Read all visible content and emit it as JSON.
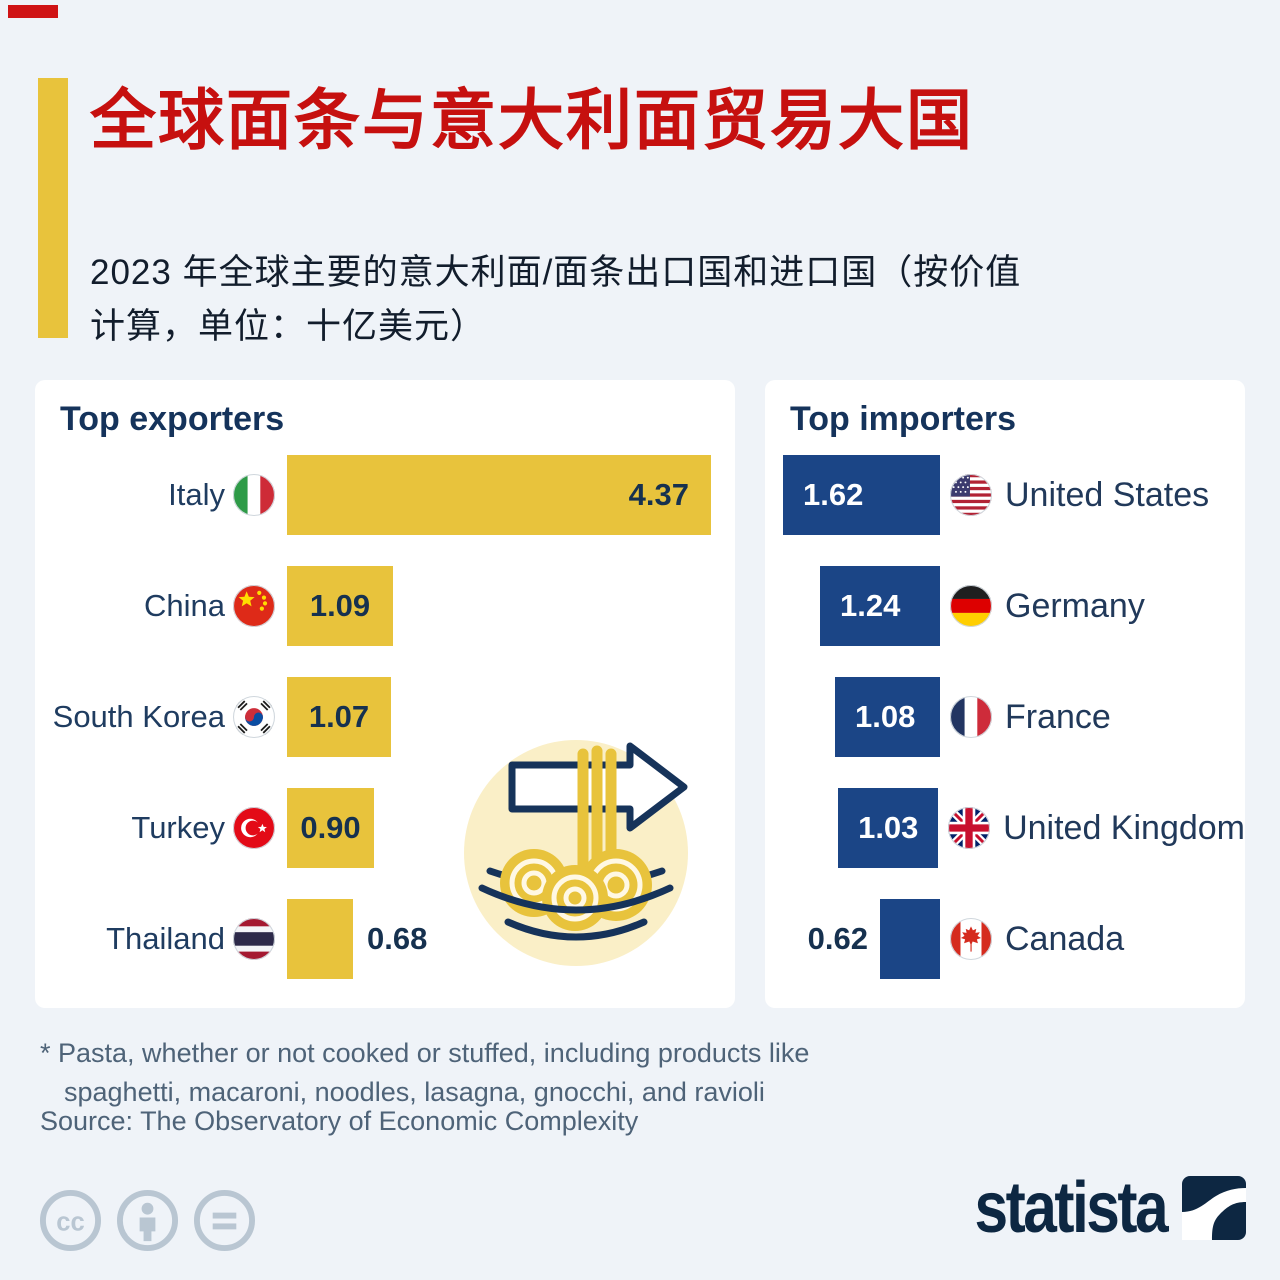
{
  "page": {
    "background_color": "#eff3f8",
    "corner_badge_color": "#cf1315"
  },
  "header": {
    "title": "全球面条与意大利面贸易大国",
    "title_color": "#c6100f",
    "accent_color": "#e8c33c",
    "subtitle_lines": [
      "2023 年全球主要的意大利面/面条出口国和进口国（按价值",
      "计算，单位：十亿美元）"
    ]
  },
  "exporters": {
    "title": "Top exporters",
    "bar_color": "#e8c33c",
    "rows": [
      {
        "country": "Italy",
        "flag": "italy",
        "value": 4.37,
        "label": "4.37"
      },
      {
        "country": "China",
        "flag": "china",
        "value": 1.09,
        "label": "1.09"
      },
      {
        "country": "South Korea",
        "flag": "south-korea",
        "value": 1.07,
        "label": "1.07"
      },
      {
        "country": "Turkey",
        "flag": "turkey",
        "value": 0.9,
        "label": "0.90"
      },
      {
        "country": "Thailand",
        "flag": "thailand",
        "value": 0.68,
        "label": "0.68"
      }
    ]
  },
  "importers": {
    "title": "Top importers",
    "bar_color": "#1b4586",
    "rows": [
      {
        "country": "United States",
        "flag": "united-states",
        "value": 1.62,
        "label": "1.62"
      },
      {
        "country": "Germany",
        "flag": "germany",
        "value": 1.24,
        "label": "1.24"
      },
      {
        "country": "France",
        "flag": "france",
        "value": 1.08,
        "label": "1.08"
      },
      {
        "country": "United Kingdom",
        "flag": "united-kingdom",
        "value": 1.03,
        "label": "1.03"
      },
      {
        "country": "Canada",
        "flag": "canada",
        "value": 0.62,
        "label": "0.62"
      }
    ]
  },
  "emblem": {
    "icon": "noodle-bowl-export-arrow-icon",
    "circle_color": "#faefc7",
    "noodle_color": "#e8c33c",
    "outline_color": "#16335a"
  },
  "footnote_lines": [
    "* Pasta, whether or not cooked or stuffed, including products like",
    "spaghetti, macaroni, noodles, lasagna, gnocchi, and ravioli"
  ],
  "source": "Source: The Observatory of Economic Complexity",
  "license_icons": [
    "cc",
    "attribution-person",
    "no-derivatives-equals"
  ],
  "branding": {
    "logo_text": "statista",
    "logo_color": "#0d2742"
  },
  "chart_data": [
    {
      "type": "bar",
      "orientation": "horizontal",
      "title": "Top exporters",
      "categories": [
        "Italy",
        "China",
        "South Korea",
        "Turkey",
        "Thailand"
      ],
      "values": [
        4.37,
        1.09,
        1.07,
        0.9,
        0.68
      ],
      "value_labels": [
        "4.37",
        "1.09",
        "1.07",
        "0.90",
        "0.68"
      ],
      "unit": "billion U.S. dollars",
      "year": 2023,
      "bar_color": "#e8c33c",
      "xlim": [
        0,
        4.6
      ],
      "grid": false,
      "legend": false
    },
    {
      "type": "bar",
      "orientation": "horizontal",
      "title": "Top importers",
      "categories": [
        "United States",
        "Germany",
        "France",
        "United Kingdom",
        "Canada"
      ],
      "values": [
        1.62,
        1.24,
        1.08,
        1.03,
        0.62
      ],
      "value_labels": [
        "1.62",
        "1.24",
        "1.08",
        "1.03",
        "0.62"
      ],
      "unit": "billion U.S. dollars",
      "year": 2023,
      "bar_color": "#1b4586",
      "xlim": [
        0,
        4.6
      ],
      "grid": false,
      "legend": false
    }
  ]
}
